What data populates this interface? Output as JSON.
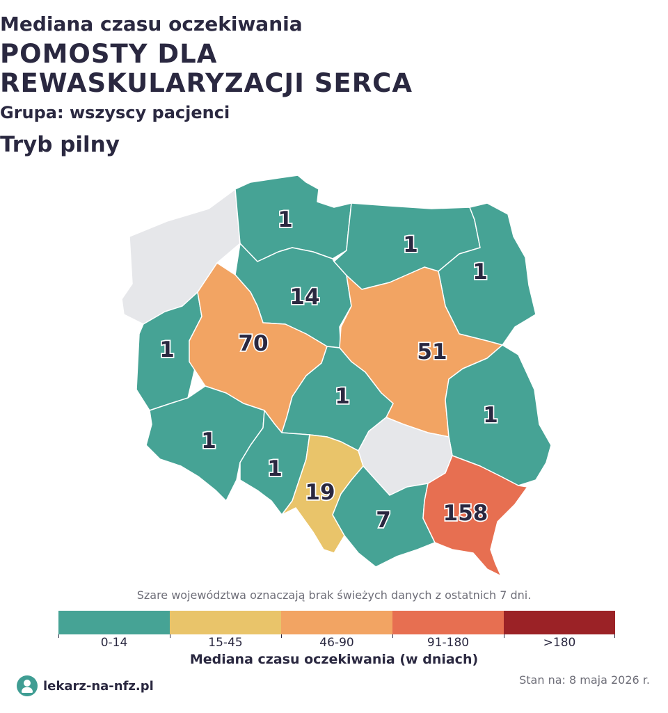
{
  "header": {
    "line1": "Mediana czasu oczekiwania",
    "line2": "POMOSTY DLA",
    "line3": "REWASKULARYZACJI SERCA",
    "line4": "Grupa: wszyscy pacjenci",
    "line5": "Tryb pilny"
  },
  "map": {
    "regions": [
      {
        "id": "zachodniopomorskie",
        "value": "",
        "color": "#e6e7ea",
        "has_data": false
      },
      {
        "id": "pomorskie",
        "value": "1",
        "color": "#46a395",
        "has_data": true
      },
      {
        "id": "warminsko-mazurskie",
        "value": "1",
        "color": "#46a395",
        "has_data": true
      },
      {
        "id": "podlaskie",
        "value": "1",
        "color": "#46a395",
        "has_data": true
      },
      {
        "id": "kujawsko-pomorskie",
        "value": "14",
        "color": "#46a395",
        "has_data": true
      },
      {
        "id": "lubuskie",
        "value": "1",
        "color": "#46a395",
        "has_data": true
      },
      {
        "id": "wielkopolskie",
        "value": "70",
        "color": "#f2a463",
        "has_data": true
      },
      {
        "id": "mazowieckie",
        "value": "51",
        "color": "#f2a463",
        "has_data": true
      },
      {
        "id": "lodzkie",
        "value": "1",
        "color": "#46a395",
        "has_data": true
      },
      {
        "id": "lubelskie",
        "value": "1",
        "color": "#46a395",
        "has_data": true
      },
      {
        "id": "dolnoslaskie",
        "value": "1",
        "color": "#46a395",
        "has_data": true
      },
      {
        "id": "opolskie",
        "value": "1",
        "color": "#46a395",
        "has_data": true
      },
      {
        "id": "slaskie",
        "value": "19",
        "color": "#e9c46a",
        "has_data": true
      },
      {
        "id": "swietokrzyskie",
        "value": "",
        "color": "#e6e7ea",
        "has_data": false
      },
      {
        "id": "malopolskie",
        "value": "7",
        "color": "#46a395",
        "has_data": true
      },
      {
        "id": "podkarpackie",
        "value": "158",
        "color": "#e76f51",
        "has_data": true
      }
    ]
  },
  "note": "Szare województwa oznaczają brak świeżych danych z ostatnich 7 dni.",
  "legend": {
    "title": "Mediana czasu oczekiwania (w dniach)",
    "items": [
      {
        "label": "0-14",
        "color": "#46a395"
      },
      {
        "label": "15-45",
        "color": "#e9c46a"
      },
      {
        "label": "46-90",
        "color": "#f2a463"
      },
      {
        "label": "91-180",
        "color": "#e76f51"
      },
      {
        "label": ">180",
        "color": "#9b2226"
      }
    ]
  },
  "footer": {
    "brand": "lekarz-na-nfz.pl",
    "brand_icon": "doctor-logo-icon",
    "date": "Stan na: 8 maja 2026 r."
  }
}
